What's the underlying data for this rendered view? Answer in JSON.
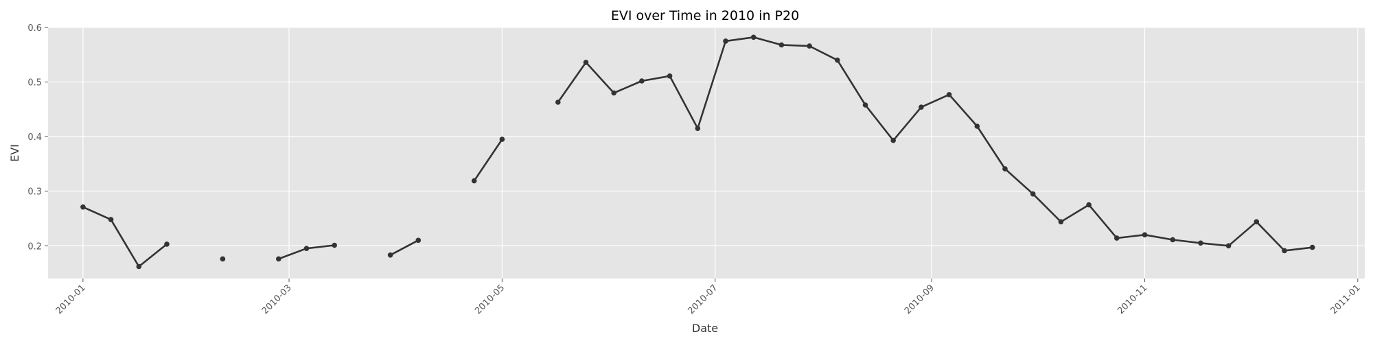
{
  "chart_data": {
    "type": "line",
    "title": "EVI over Time in 2010 in P20",
    "xlabel": "Date",
    "ylabel": "EVI",
    "xlim": [
      "2009-12-22",
      "2011-01-03"
    ],
    "ylim": [
      0.14,
      0.6
    ],
    "grid": true,
    "x_ticks": [
      "2010-01",
      "2010-03",
      "2010-05",
      "2010-07",
      "2010-09",
      "2010-11",
      "2011-01"
    ],
    "y_ticks": [
      "0.2",
      "0.3",
      "0.4",
      "0.5",
      "0.6"
    ],
    "colors": {
      "plot_background": "#e5e5e5",
      "series": "#333333",
      "grid": "#ffffff"
    },
    "series": [
      {
        "points": [
          [
            "2010-01-01",
            0.271
          ],
          [
            "2010-01-09",
            0.248
          ],
          [
            "2010-01-17",
            0.162
          ],
          [
            "2010-01-25",
            0.203
          ],
          [
            "2010-02-10",
            null
          ],
          [
            "2010-02-10",
            0.176
          ],
          [
            "2010-02-18",
            null
          ],
          [
            "2010-02-26",
            0.176
          ],
          [
            "2010-03-06",
            0.195
          ],
          [
            "2010-03-14",
            0.201
          ],
          [
            "2010-03-22",
            null
          ],
          [
            "2010-03-30",
            0.183
          ],
          [
            "2010-04-07",
            0.21
          ],
          [
            "2010-04-15",
            null
          ],
          [
            "2010-04-23",
            0.319
          ],
          [
            "2010-05-01",
            0.395
          ],
          [
            "2010-05-09",
            null
          ],
          [
            "2010-05-17",
            0.463
          ],
          [
            "2010-05-25",
            0.536
          ],
          [
            "2010-06-02",
            0.48
          ],
          [
            "2010-06-10",
            0.502
          ],
          [
            "2010-06-18",
            0.511
          ],
          [
            "2010-06-26",
            0.415
          ],
          [
            "2010-07-04",
            0.575
          ],
          [
            "2010-07-12",
            0.582
          ],
          [
            "2010-07-20",
            0.568
          ],
          [
            "2010-07-28",
            0.566
          ],
          [
            "2010-08-05",
            0.54
          ],
          [
            "2010-08-13",
            0.458
          ],
          [
            "2010-08-21",
            0.393
          ],
          [
            "2010-08-29",
            0.454
          ],
          [
            "2010-09-06",
            0.477
          ],
          [
            "2010-09-14",
            0.419
          ],
          [
            "2010-09-22",
            0.341
          ],
          [
            "2010-09-30",
            0.295
          ],
          [
            "2010-10-08",
            0.244
          ],
          [
            "2010-10-16",
            0.275
          ],
          [
            "2010-10-24",
            0.214
          ],
          [
            "2010-11-01",
            0.22
          ],
          [
            "2010-11-09",
            0.211
          ],
          [
            "2010-11-17",
            0.205
          ],
          [
            "2010-11-25",
            0.2
          ],
          [
            "2010-12-03",
            0.244
          ],
          [
            "2010-12-11",
            0.191
          ],
          [
            "2010-12-19",
            0.197
          ]
        ]
      }
    ]
  }
}
